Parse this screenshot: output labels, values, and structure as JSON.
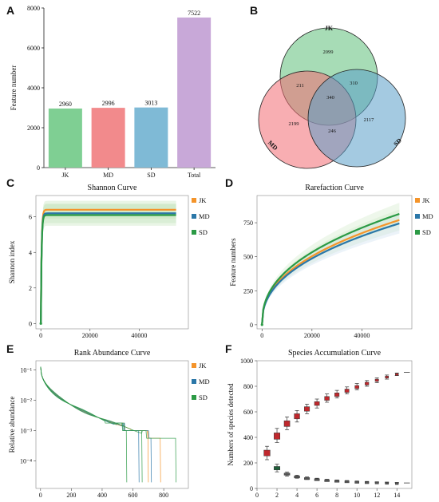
{
  "panels": {
    "A": {
      "letter": "A"
    },
    "B": {
      "letter": "B"
    },
    "C": {
      "letter": "C"
    },
    "D": {
      "letter": "D"
    },
    "E": {
      "letter": "E"
    },
    "F": {
      "letter": "F"
    }
  },
  "colors": {
    "JK": "#f4942a",
    "MD": "#2b77a8",
    "SD": "#2b9a45"
  },
  "chart_data": [
    {
      "id": "A",
      "type": "bar",
      "ylabel": "Feature number",
      "categories": [
        "JK",
        "MD",
        "SD",
        "Total"
      ],
      "values": [
        2960,
        2996,
        3013,
        7522
      ],
      "value_labels": [
        "2960",
        "2996",
        "3013",
        "7522"
      ],
      "colors": [
        "#7fcf93",
        "#f28a8c",
        "#7fbad6",
        "#c8a8d8"
      ],
      "ylim": [
        0,
        8000
      ],
      "yticks": [
        0,
        2000,
        4000,
        6000,
        8000
      ]
    },
    {
      "id": "B",
      "type": "venn",
      "sets": [
        {
          "name": "JK",
          "color": "#5fc07a"
        },
        {
          "name": "MD",
          "color": "#f26b73"
        },
        {
          "name": "SD",
          "color": "#5a9fc9"
        }
      ],
      "regions": {
        "JK_only": "2099",
        "MD_only": "2199",
        "SD_only": "2117",
        "JK_MD": "211",
        "JK_SD": "310",
        "MD_SD": "246",
        "all": "340"
      }
    },
    {
      "id": "C",
      "type": "line",
      "title": "Shannon Curve",
      "ylabel": "Shannon index",
      "xlim": [
        -2000,
        60000
      ],
      "ylim": [
        -0.3,
        7.2
      ],
      "xticks": [
        "0",
        "20000",
        "40000"
      ],
      "xtick_values": [
        0,
        20000,
        40000
      ],
      "yticks": [
        "0",
        "2",
        "4",
        "6"
      ],
      "ytick_values": [
        0,
        2,
        4,
        6
      ],
      "legend": [
        "JK",
        "MD",
        "SD"
      ],
      "series": [
        {
          "name": "JK",
          "plateau": 6.4,
          "band": 0.5
        },
        {
          "name": "MD",
          "plateau": 6.2,
          "band": 0.55
        },
        {
          "name": "SD",
          "plateau": 6.1,
          "band": 0.6
        }
      ],
      "xmax": 55000
    },
    {
      "id": "D",
      "type": "line",
      "title": "Rarefaction Curve",
      "ylabel": "Feature numbers",
      "xlim": [
        -2000,
        60000
      ],
      "ylim": [
        -30,
        950
      ],
      "xticks": [
        "0",
        "20000",
        "40000"
      ],
      "xtick_values": [
        0,
        20000,
        40000
      ],
      "yticks": [
        "0",
        "250",
        "500",
        "750"
      ],
      "ytick_values": [
        0,
        250,
        500,
        750
      ],
      "legend": [
        "JK",
        "MD",
        "SD"
      ],
      "series": [
        {
          "name": "JK",
          "end": 770
        },
        {
          "name": "MD",
          "end": 745
        },
        {
          "name": "SD",
          "end": 815
        }
      ],
      "xmax": 55000
    },
    {
      "id": "E",
      "type": "line",
      "title": "Rank Abundance Curve",
      "ylabel": "Relative abundance",
      "yscale": "log",
      "xlim": [
        -30,
        960
      ],
      "ylim_log10": [
        -4.9,
        -0.7
      ],
      "xticks": [
        "0",
        "200",
        "400",
        "600",
        "800"
      ],
      "xtick_values": [
        0,
        200,
        400,
        600,
        800
      ],
      "yticks": [
        "10⁻¹",
        "10⁻²",
        "10⁻³",
        "10⁻⁴"
      ],
      "ytick_values_log10": [
        -1,
        -2,
        -3,
        -4
      ],
      "legend": [
        "JK",
        "MD",
        "SD"
      ]
    },
    {
      "id": "F",
      "type": "box",
      "title": "Species Accumulation Curve",
      "ylabel": "Numbers of species detected",
      "xlim": [
        0,
        15.5
      ],
      "ylim": [
        0,
        1000
      ],
      "xticks": [
        "0",
        "2",
        "4",
        "6",
        "8",
        "10",
        "12",
        "14"
      ],
      "xtick_values": [
        0,
        2,
        4,
        6,
        8,
        10,
        12,
        14
      ],
      "yticks": [
        "0",
        "200",
        "400",
        "600",
        "800",
        "1000"
      ],
      "ytick_values": [
        0,
        200,
        400,
        600,
        800,
        1000
      ],
      "accumulation": [
        {
          "x": 1,
          "median": 285,
          "q1": 255,
          "q3": 300,
          "lo": 225,
          "hi": 330
        },
        {
          "x": 2,
          "median": 415,
          "q1": 385,
          "q3": 435,
          "lo": 360,
          "hi": 470
        },
        {
          "x": 3,
          "median": 510,
          "q1": 485,
          "q3": 530,
          "lo": 460,
          "hi": 560
        },
        {
          "x": 4,
          "median": 565,
          "q1": 545,
          "q3": 585,
          "lo": 520,
          "hi": 610
        },
        {
          "x": 5,
          "median": 620,
          "q1": 605,
          "q3": 640,
          "lo": 585,
          "hi": 660
        },
        {
          "x": 6,
          "median": 665,
          "q1": 650,
          "q3": 680,
          "lo": 630,
          "hi": 700
        },
        {
          "x": 7,
          "median": 705,
          "q1": 690,
          "q3": 720,
          "lo": 675,
          "hi": 740
        },
        {
          "x": 8,
          "median": 735,
          "q1": 720,
          "q3": 748,
          "lo": 708,
          "hi": 768
        },
        {
          "x": 9,
          "median": 765,
          "q1": 752,
          "q3": 778,
          "lo": 740,
          "hi": 795
        },
        {
          "x": 10,
          "median": 795,
          "q1": 782,
          "q3": 806,
          "lo": 772,
          "hi": 822
        },
        {
          "x": 11,
          "median": 822,
          "q1": 810,
          "q3": 832,
          "lo": 800,
          "hi": 845
        },
        {
          "x": 12,
          "median": 848,
          "q1": 838,
          "q3": 856,
          "lo": 828,
          "hi": 866
        },
        {
          "x": 13,
          "median": 872,
          "q1": 864,
          "q3": 880,
          "lo": 856,
          "hi": 888
        },
        {
          "x": 14,
          "median": 895,
          "q1": 890,
          "q3": 900,
          "lo": 884,
          "hi": 904
        }
      ],
      "new_species": [
        {
          "x": 2,
          "median": 158,
          "q1": 145,
          "q3": 172,
          "lo": 130,
          "hi": 190
        },
        {
          "x": 3,
          "median": 112,
          "q1": 104,
          "q3": 120,
          "lo": 96,
          "hi": 128
        },
        {
          "x": 4,
          "median": 92,
          "q1": 86,
          "q3": 98,
          "lo": 80,
          "hi": 104
        },
        {
          "x": 5,
          "median": 80,
          "q1": 75,
          "q3": 85,
          "lo": 70,
          "hi": 90
        },
        {
          "x": 6,
          "median": 72,
          "q1": 68,
          "q3": 76,
          "lo": 64,
          "hi": 80
        },
        {
          "x": 7,
          "median": 66,
          "q1": 63,
          "q3": 69,
          "lo": 60,
          "hi": 72
        },
        {
          "x": 8,
          "median": 61,
          "q1": 58,
          "q3": 64,
          "lo": 56,
          "hi": 66
        },
        {
          "x": 9,
          "median": 57,
          "q1": 55,
          "q3": 60,
          "lo": 53,
          "hi": 62
        },
        {
          "x": 10,
          "median": 54,
          "q1": 52,
          "q3": 56,
          "lo": 50,
          "hi": 58
        },
        {
          "x": 11,
          "median": 51,
          "q1": 49,
          "q3": 53,
          "lo": 48,
          "hi": 55
        },
        {
          "x": 12,
          "median": 49,
          "q1": 47,
          "q3": 51,
          "lo": 46,
          "hi": 52
        },
        {
          "x": 13,
          "median": 47,
          "q1": 45,
          "q3": 48,
          "lo": 44,
          "hi": 50
        },
        {
          "x": 14,
          "median": 45,
          "q1": 44,
          "q3": 46,
          "lo": 43,
          "hi": 47
        }
      ],
      "end_markers": [
        {
          "y": 910
        },
        {
          "y": 43
        }
      ]
    }
  ]
}
